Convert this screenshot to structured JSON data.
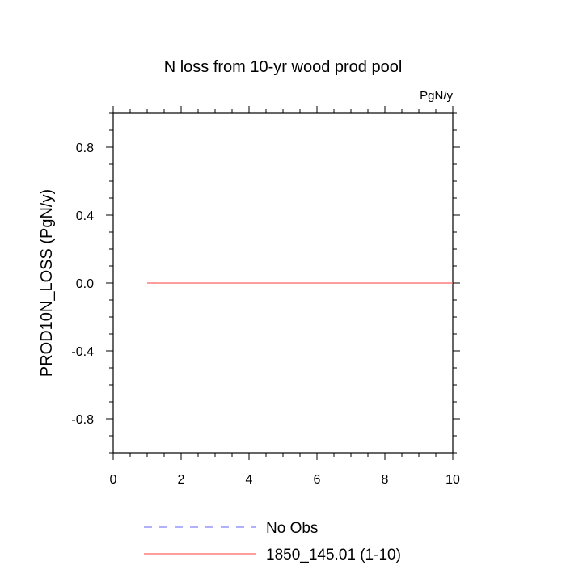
{
  "chart_data": {
    "type": "line",
    "title": "N loss from 10-yr wood prod pool",
    "units": "PgN/y",
    "xlabel": "",
    "ylabel": "PROD10N_LOSS  (PgN/y)",
    "xlim": [
      0,
      10
    ],
    "ylim": [
      -1,
      1
    ],
    "x_ticks": [
      0,
      2,
      4,
      6,
      8,
      10
    ],
    "x_tick_labels": [
      "0",
      "2",
      "4",
      "6",
      "8",
      "10"
    ],
    "y_ticks": [
      -0.8,
      -0.4,
      0.0,
      0.4,
      0.8
    ],
    "y_tick_labels": [
      "-0.8",
      "-0.4",
      "0.0",
      "0.4",
      "0.8"
    ],
    "grid": false,
    "legend_position": "bottom",
    "series": [
      {
        "name": "No Obs",
        "color": "#8080ff",
        "style": "dashed",
        "x": [],
        "y": []
      },
      {
        "name": "1850_145.01 (1-10)",
        "color": "#ff6060",
        "style": "solid",
        "x": [
          1,
          2,
          3,
          4,
          5,
          6,
          7,
          8,
          9,
          10
        ],
        "y": [
          0,
          0,
          0,
          0,
          0,
          0,
          0,
          0,
          0,
          0
        ]
      }
    ]
  }
}
